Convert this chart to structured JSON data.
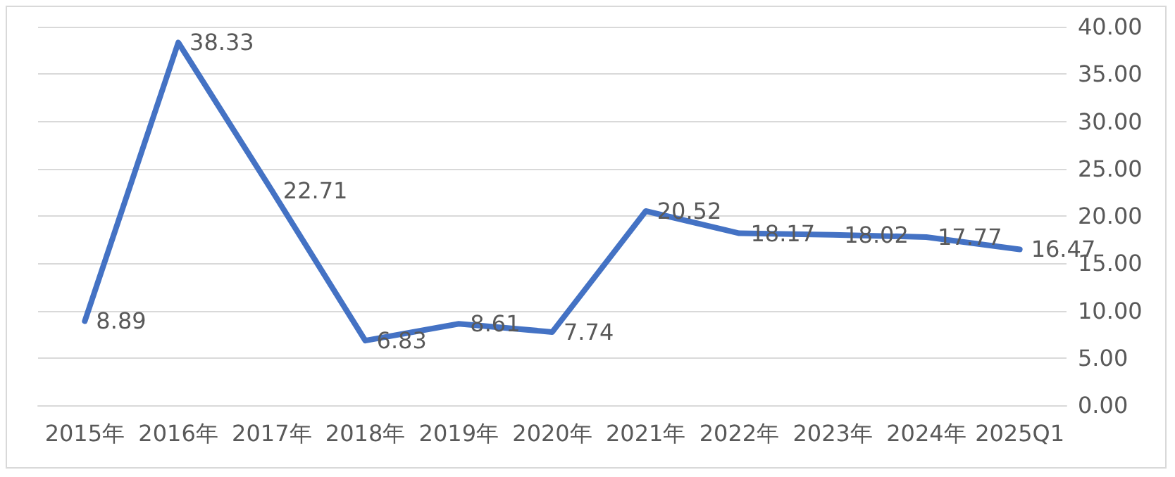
{
  "chart_data": {
    "type": "line",
    "categories": [
      "2015年",
      "2016年",
      "2017年",
      "2018年",
      "2019年",
      "2020年",
      "2021年",
      "2022年",
      "2023年",
      "2024年",
      "2025Q1"
    ],
    "series": [
      {
        "color": "#4472c4",
        "values": [
          8.89,
          38.33,
          22.71,
          6.83,
          8.61,
          7.74,
          20.52,
          18.17,
          18.02,
          17.77,
          16.47
        ]
      }
    ],
    "ylim": [
      0,
      40
    ],
    "yticks": [
      {
        "value": 0,
        "label": "0.00"
      },
      {
        "value": 5,
        "label": "5.00"
      },
      {
        "value": 10,
        "label": "10.00"
      },
      {
        "value": 15,
        "label": "15.00"
      },
      {
        "value": 20,
        "label": "20.00"
      },
      {
        "value": 25,
        "label": "25.00"
      },
      {
        "value": 30,
        "label": "30.00"
      },
      {
        "value": 35,
        "label": "35.00"
      },
      {
        "value": 40,
        "label": "40.00"
      }
    ],
    "grid": "y",
    "data_labels": true,
    "marker": "none",
    "line_style": "solid"
  }
}
